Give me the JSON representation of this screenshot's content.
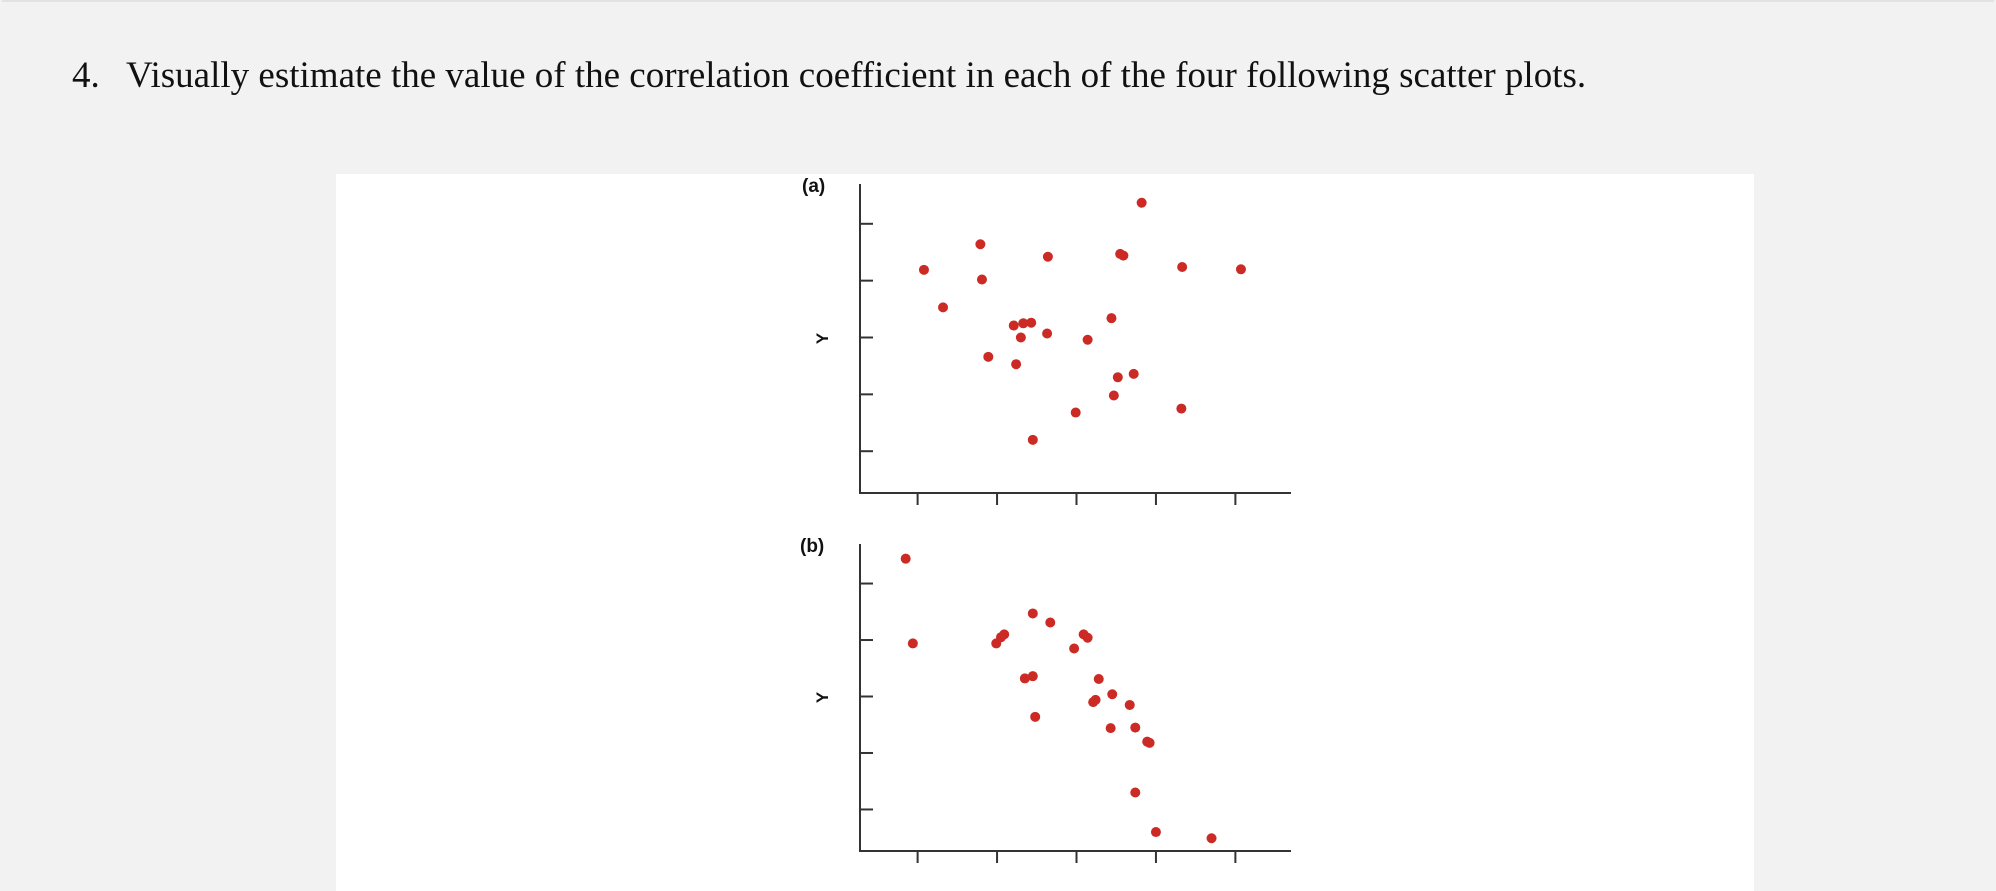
{
  "question": {
    "number": "4.",
    "text": "Visually estimate the value of the correlation coefficient in each of the four following scatter plots."
  },
  "colors": {
    "point": "#cc2a24",
    "axis": "#333333",
    "panel": "#ffffff",
    "background": "#f2f2f2"
  },
  "chart_data": [
    {
      "type": "scatter",
      "label": "(a)",
      "ylabel": "Y",
      "xlabel": "",
      "xlim": [
        0.3,
        5.7
      ],
      "ylim": [
        0.3,
        5.7
      ],
      "xticks": [
        1,
        2,
        3,
        4,
        5
      ],
      "yticks": [
        1,
        2,
        3,
        4,
        5
      ],
      "points": [
        [
          1.08,
          4.19
        ],
        [
          1.32,
          3.53
        ],
        [
          1.79,
          4.64
        ],
        [
          1.81,
          4.02
        ],
        [
          1.89,
          2.66
        ],
        [
          2.21,
          3.21
        ],
        [
          2.24,
          2.53
        ],
        [
          2.3,
          3.0
        ],
        [
          2.33,
          3.25
        ],
        [
          2.43,
          3.26
        ],
        [
          2.45,
          1.2
        ],
        [
          2.64,
          4.42
        ],
        [
          2.63,
          3.07
        ],
        [
          2.99,
          1.68
        ],
        [
          3.14,
          2.96
        ],
        [
          3.44,
          3.34
        ],
        [
          3.47,
          1.98
        ],
        [
          3.52,
          2.3
        ],
        [
          3.55,
          4.47
        ],
        [
          3.59,
          4.44
        ],
        [
          3.72,
          2.36
        ],
        [
          3.82,
          5.37
        ],
        [
          4.33,
          4.24
        ],
        [
          4.32,
          1.75
        ],
        [
          5.07,
          4.2
        ]
      ]
    },
    {
      "type": "scatter",
      "label": "(b)",
      "ylabel": "Y",
      "xlabel": "",
      "xlim": [
        0.3,
        5.7
      ],
      "ylim": [
        0.3,
        5.7
      ],
      "xticks": [
        1,
        2,
        3,
        4,
        5
      ],
      "yticks": [
        1,
        2,
        3,
        4,
        5
      ],
      "points": [
        [
          0.85,
          5.44
        ],
        [
          0.94,
          3.94
        ],
        [
          1.99,
          3.94
        ],
        [
          2.05,
          4.05
        ],
        [
          2.09,
          4.1
        ],
        [
          2.35,
          3.32
        ],
        [
          2.45,
          3.36
        ],
        [
          2.45,
          4.47
        ],
        [
          2.48,
          2.64
        ],
        [
          2.67,
          4.31
        ],
        [
          2.97,
          3.85
        ],
        [
          3.09,
          4.1
        ],
        [
          3.14,
          4.04
        ],
        [
          3.21,
          2.9
        ],
        [
          3.24,
          2.94
        ],
        [
          3.28,
          3.31
        ],
        [
          3.43,
          2.44
        ],
        [
          3.45,
          3.04
        ],
        [
          3.67,
          2.85
        ],
        [
          3.74,
          2.45
        ],
        [
          3.74,
          1.3
        ],
        [
          3.89,
          2.2
        ],
        [
          3.92,
          2.18
        ],
        [
          4.0,
          0.6
        ],
        [
          4.7,
          0.49
        ]
      ]
    }
  ]
}
